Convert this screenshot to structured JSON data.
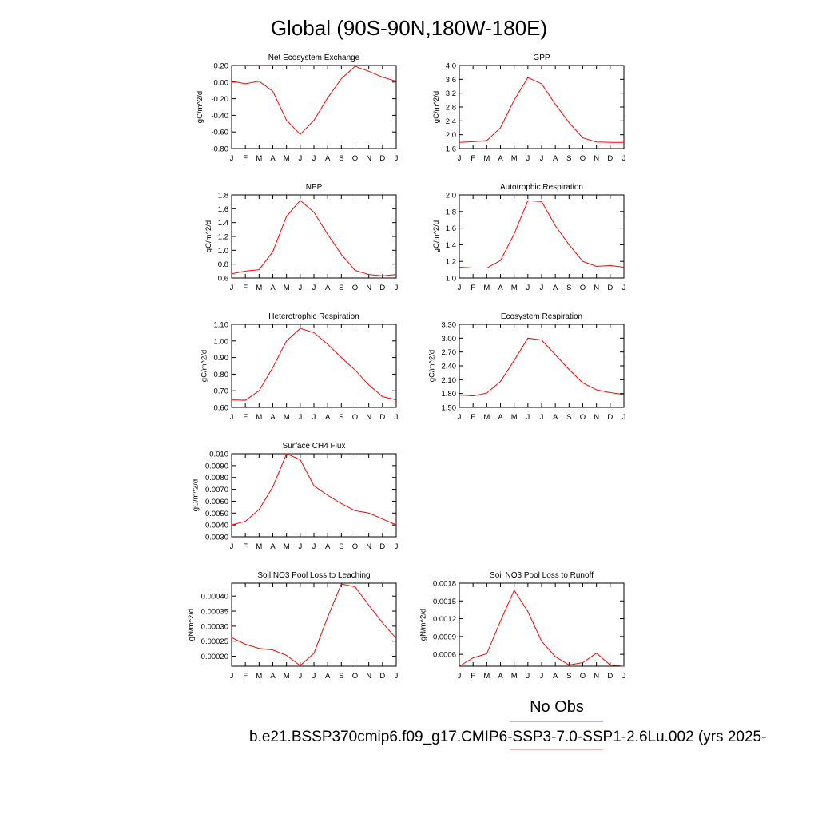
{
  "page": {
    "title": "Global (90S-90N,180W-180E)",
    "legend_label": "No Obs",
    "caption": "b.e21.BSSP370cmip6.f09_g17.CMIP6-SSP3-7.0-SSP1-2.6Lu.002 (yrs 2025-",
    "colors": {
      "model_line": "#ff0000",
      "obs_legend_line": "#6a6aff",
      "model_legend_line": "#ff5a5a"
    }
  },
  "chart_data": [
    {
      "type": "line",
      "title": "Net Ecosystem Exchange",
      "ylabel": "gC/m^2/d",
      "xlabel": "",
      "categories": [
        "J",
        "F",
        "M",
        "A",
        "M",
        "J",
        "J",
        "A",
        "S",
        "O",
        "N",
        "D",
        "J"
      ],
      "ylim": [
        -0.8,
        0.2
      ],
      "yticks": [
        "-0.80",
        "-0.60",
        "-0.40",
        "-0.20",
        "0.00",
        "0.20"
      ],
      "series": [
        {
          "values": [
            0.01,
            -0.02,
            0.01,
            -0.11,
            -0.46,
            -0.63,
            -0.46,
            -0.19,
            0.04,
            0.19,
            0.13,
            0.06,
            0.01
          ]
        }
      ]
    },
    {
      "type": "line",
      "title": "GPP",
      "ylabel": "gC/m^2/d",
      "xlabel": "",
      "categories": [
        "J",
        "F",
        "M",
        "A",
        "M",
        "J",
        "J",
        "A",
        "S",
        "O",
        "N",
        "D",
        "J"
      ],
      "ylim": [
        1.6,
        4.0
      ],
      "yticks": [
        "1.6",
        "2.0",
        "2.4",
        "2.8",
        "3.2",
        "3.6",
        "4.0"
      ],
      "series": [
        {
          "values": [
            1.78,
            1.8,
            1.83,
            2.2,
            3.0,
            3.65,
            3.47,
            2.88,
            2.35,
            1.91,
            1.79,
            1.78,
            1.78
          ]
        }
      ]
    },
    {
      "type": "line",
      "title": "NPP",
      "ylabel": "gC/m^2/d",
      "xlabel": "",
      "categories": [
        "J",
        "F",
        "M",
        "A",
        "M",
        "J",
        "J",
        "A",
        "S",
        "O",
        "N",
        "D",
        "J"
      ],
      "ylim": [
        0.6,
        1.8
      ],
      "yticks": [
        "0.6",
        "0.8",
        "1.0",
        "1.2",
        "1.4",
        "1.6",
        "1.8"
      ],
      "series": [
        {
          "values": [
            0.66,
            0.7,
            0.72,
            0.98,
            1.49,
            1.72,
            1.55,
            1.23,
            0.94,
            0.71,
            0.65,
            0.63,
            0.65
          ]
        }
      ]
    },
    {
      "type": "line",
      "title": "Autotrophic Respiration",
      "ylabel": "gC/m^2/d",
      "xlabel": "",
      "categories": [
        "J",
        "F",
        "M",
        "A",
        "M",
        "J",
        "J",
        "A",
        "S",
        "O",
        "N",
        "D",
        "J"
      ],
      "ylim": [
        1.0,
        2.0
      ],
      "yticks": [
        "1.0",
        "1.2",
        "1.4",
        "1.6",
        "1.8",
        "2.0"
      ],
      "series": [
        {
          "values": [
            1.13,
            1.12,
            1.12,
            1.21,
            1.53,
            1.93,
            1.92,
            1.63,
            1.4,
            1.2,
            1.14,
            1.15,
            1.13
          ]
        }
      ]
    },
    {
      "type": "line",
      "title": "Heterotrophic Respiration",
      "ylabel": "gC/m^2/d",
      "xlabel": "",
      "categories": [
        "J",
        "F",
        "M",
        "A",
        "M",
        "J",
        "J",
        "A",
        "S",
        "O",
        "N",
        "D",
        "J"
      ],
      "ylim": [
        0.6,
        1.1
      ],
      "yticks": [
        "0.60",
        "0.70",
        "0.80",
        "0.90",
        "1.00",
        "1.10"
      ],
      "series": [
        {
          "values": [
            0.645,
            0.643,
            0.7,
            0.84,
            1.0,
            1.075,
            1.05,
            0.98,
            0.9,
            0.825,
            0.735,
            0.665,
            0.645
          ]
        }
      ]
    },
    {
      "type": "line",
      "title": "Ecosystem Respiration",
      "ylabel": "gC/m^2/d",
      "xlabel": "",
      "categories": [
        "J",
        "F",
        "M",
        "A",
        "M",
        "J",
        "J",
        "A",
        "S",
        "O",
        "N",
        "D",
        "J"
      ],
      "ylim": [
        1.5,
        3.3
      ],
      "yticks": [
        "1.50",
        "1.80",
        "2.10",
        "2.40",
        "2.70",
        "3.00",
        "3.30"
      ],
      "series": [
        {
          "values": [
            1.77,
            1.75,
            1.81,
            2.06,
            2.52,
            3.0,
            2.96,
            2.64,
            2.32,
            2.03,
            1.88,
            1.82,
            1.78
          ]
        }
      ]
    },
    {
      "type": "line",
      "title": "Surface CH4 Flux",
      "ylabel": "gC/m^2/d",
      "xlabel": "",
      "categories": [
        "J",
        "F",
        "M",
        "A",
        "M",
        "J",
        "J",
        "A",
        "S",
        "O",
        "N",
        "D",
        "J"
      ],
      "ylim": [
        0.003,
        0.01
      ],
      "yticks": [
        "0.0030",
        "0.0040",
        "0.0050",
        "0.0060",
        "0.0070",
        "0.0080",
        "0.0090",
        "0.010"
      ],
      "series": [
        {
          "values": [
            0.004,
            0.0043,
            0.0053,
            0.0072,
            0.01,
            0.0095,
            0.0073,
            0.0065,
            0.0058,
            0.0052,
            0.005,
            0.0045,
            0.004
          ]
        }
      ]
    },
    {
      "type": "line",
      "title": "Soil NO3 Pool Loss to Leaching",
      "ylabel": "gN/m^2/d",
      "xlabel": "",
      "categories": [
        "J",
        "F",
        "M",
        "A",
        "M",
        "J",
        "J",
        "A",
        "S",
        "O",
        "N",
        "D",
        "J"
      ],
      "ylim": [
        0.000167,
        0.000443
      ],
      "yticks": [
        "0.00020",
        "0.00025",
        "0.00030",
        "0.00035",
        "0.00040"
      ],
      "series": [
        {
          "values": [
            0.000262,
            0.00024,
            0.000226,
            0.000221,
            0.000203,
            0.000169,
            0.00021,
            0.00033,
            0.00044,
            0.000431,
            0.00037,
            0.000311,
            0.000259
          ]
        }
      ]
    },
    {
      "type": "line",
      "title": "Soil NO3 Pool Loss to Runoff",
      "ylabel": "gN/m^2/d",
      "xlabel": "",
      "categories": [
        "J",
        "F",
        "M",
        "A",
        "M",
        "J",
        "J",
        "A",
        "S",
        "O",
        "N",
        "D",
        "J"
      ],
      "ylim": [
        0.0004,
        0.0018
      ],
      "yticks": [
        "0.0006",
        "0.0009",
        "0.0012",
        "0.0015",
        "0.0018"
      ],
      "series": [
        {
          "values": [
            0.0004,
            0.00054,
            0.00061,
            0.00116,
            0.00168,
            0.00132,
            0.00082,
            0.00056,
            0.00042,
            0.00046,
            0.00062,
            0.00042,
            0.0004
          ]
        }
      ]
    }
  ]
}
